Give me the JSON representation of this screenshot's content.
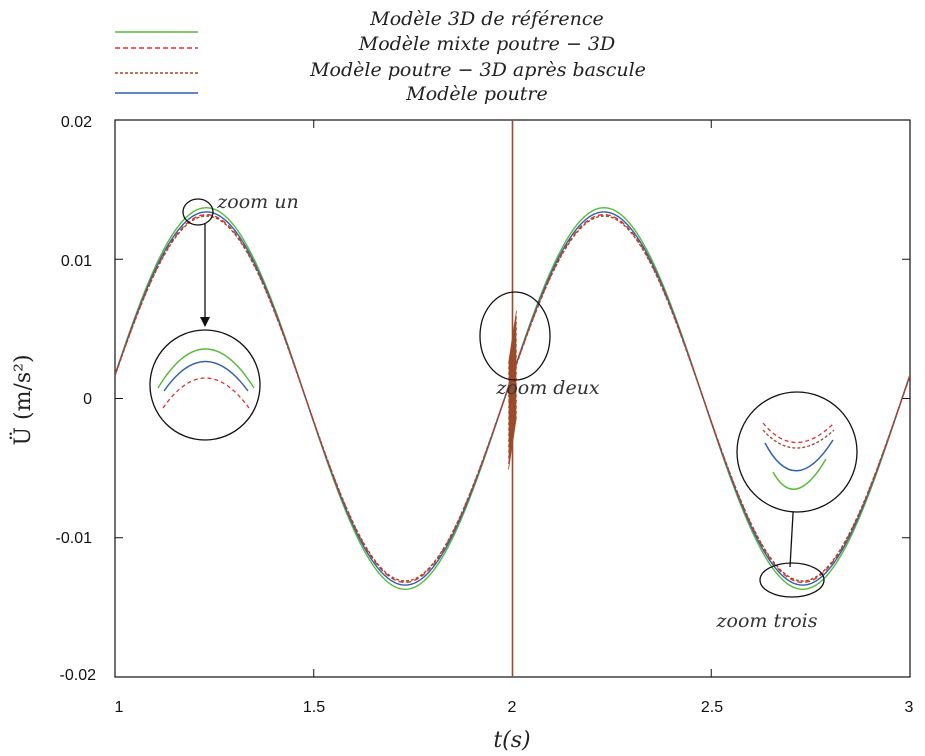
{
  "chart_data": {
    "type": "line",
    "x_label": "t(s)",
    "y_label": "Ü (m/s²)",
    "xlim": [
      1,
      3
    ],
    "ylim": [
      -0.02,
      0.02
    ],
    "x_ticks": [
      "1",
      "1.5",
      "2",
      "2.5",
      "3"
    ],
    "y_ticks": [
      "0.02",
      "0.01",
      "0",
      "-0.01",
      "-0.02"
    ],
    "grid": false,
    "legend_position": "top-center",
    "series": [
      {
        "name": "Modèle 3D de référence",
        "color": "#55bb3a",
        "style": "solid",
        "amplitude": 0.0137
      },
      {
        "name": "Modèle mixte poutre − 3D",
        "color": "#e03030",
        "style": "dashed",
        "amplitude": 0.0132
      },
      {
        "name": "Modèle poutre − 3D après bascule",
        "color": "#9b4a2a",
        "style": "dashed",
        "amplitude": 0.0131,
        "spike_at": 2.0
      },
      {
        "name": "Modèle poutre",
        "color": "#2f5fb0",
        "style": "solid",
        "amplitude": 0.0134
      }
    ],
    "signal": {
      "frequency_hz": 1.0,
      "phase_zero_crossing_s": 0.98
    },
    "annotations": [
      "zoom un",
      "zoom deux",
      "zoom trois"
    ]
  }
}
